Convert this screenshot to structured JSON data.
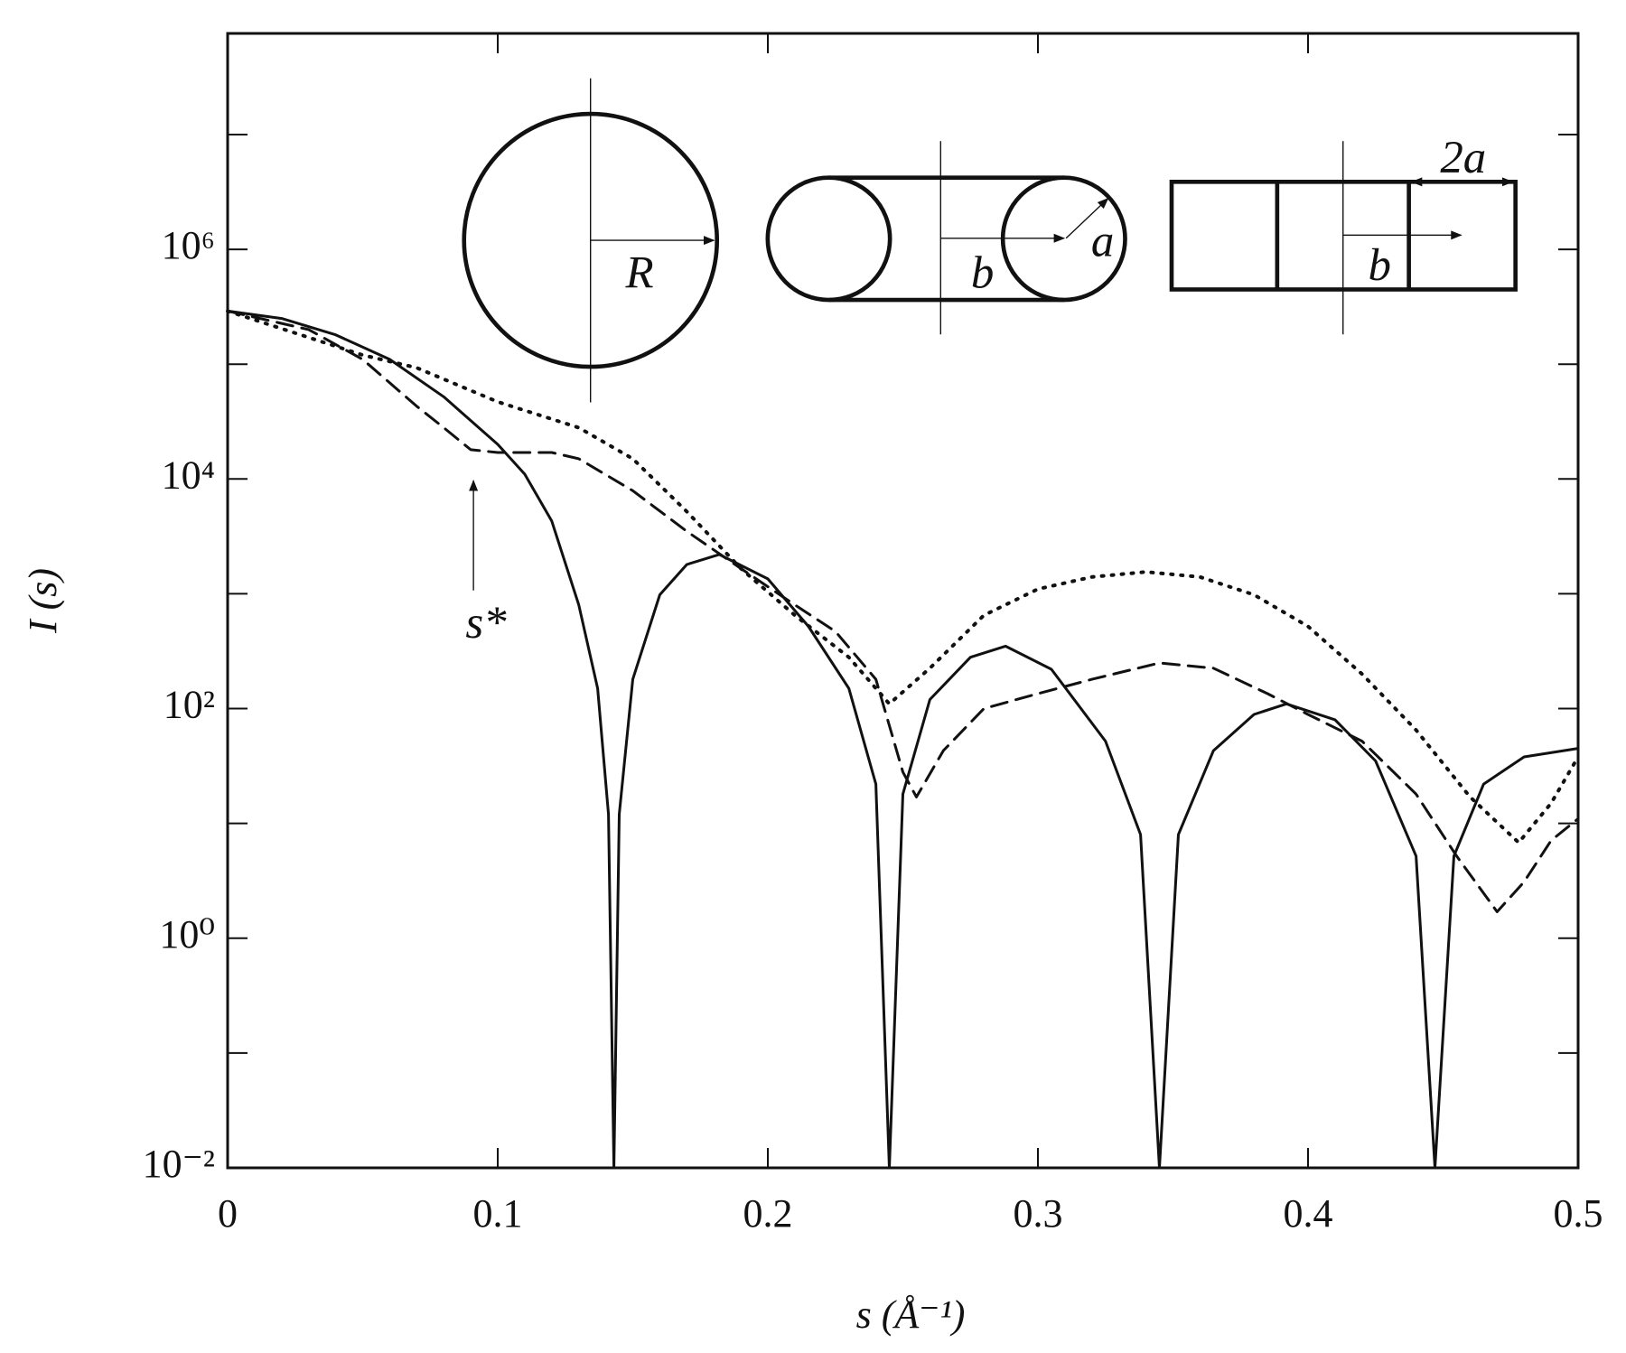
{
  "chart_data": {
    "type": "line",
    "xlabel": "s (Å⁻¹)",
    "ylabel": "I (s)",
    "xlim": [
      0,
      0.5
    ],
    "xticks": [
      0,
      0.1,
      0.2,
      0.3,
      0.4,
      0.5
    ],
    "ylim": [
      0.01,
      76000000
    ],
    "yscale": "log",
    "yticks": [
      {
        "value": 0.01,
        "label": "10⁻²"
      },
      {
        "value": 1,
        "label": "10⁰"
      },
      {
        "value": 100,
        "label": "10²"
      },
      {
        "value": 10000,
        "label": "10⁴"
      },
      {
        "value": 1000000,
        "label": "10⁶"
      }
    ],
    "yminorticks": [
      0.1,
      10,
      1000,
      100000,
      10000000
    ],
    "annotation": "s*",
    "inset_labels": [
      "R",
      "b",
      "a",
      "b",
      "2a"
    ],
    "series": [
      {
        "style": "solid",
        "color": "#111111",
        "x": [
          0,
          0.02,
          0.04,
          0.06,
          0.08,
          0.1,
          0.11,
          0.12,
          0.13,
          0.137,
          0.141,
          0.143,
          0.145,
          0.15,
          0.16,
          0.17,
          0.182,
          0.2,
          0.215,
          0.23,
          0.24,
          0.245,
          0.25,
          0.26,
          0.275,
          0.288,
          0.305,
          0.325,
          0.338,
          0.345,
          0.352,
          0.365,
          0.38,
          0.392,
          0.41,
          0.425,
          0.44,
          0.447,
          0.454,
          0.465,
          0.48,
          0.5
        ],
        "values": [
          290000,
          250000,
          180000,
          110000,
          52000,
          20000,
          11000,
          4300,
          800,
          150,
          12,
          0.01,
          12,
          180,
          980,
          1800,
          2200,
          1350,
          520,
          150,
          22,
          0.01,
          18,
          120,
          280,
          350,
          220,
          52,
          8,
          0.01,
          8,
          43,
          89,
          110,
          80,
          35,
          5.2,
          0.01,
          5.2,
          22,
          38,
          45
        ]
      },
      {
        "style": "dashed",
        "color": "#111111",
        "x": [
          0,
          0.03,
          0.05,
          0.07,
          0.08,
          0.09,
          0.1,
          0.12,
          0.13,
          0.15,
          0.17,
          0.19,
          0.21,
          0.225,
          0.24,
          0.25,
          0.255,
          0.265,
          0.28,
          0.3,
          0.32,
          0.345,
          0.365,
          0.385,
          0.4,
          0.42,
          0.44,
          0.455,
          0.47,
          0.48,
          0.49,
          0.5
        ],
        "values": [
          290000,
          200000,
          110000,
          43000,
          28000,
          18000,
          17000,
          17000,
          15000,
          7900,
          3500,
          1660,
          800,
          470,
          180,
          28,
          17,
          43,
          100,
          135,
          180,
          250,
          225,
          135,
          89,
          52,
          18,
          5.2,
          1.7,
          3.1,
          7.1,
          11
        ]
      },
      {
        "style": "dotted",
        "color": "#111111",
        "x": [
          0,
          0.05,
          0.07,
          0.1,
          0.13,
          0.15,
          0.17,
          0.19,
          0.21,
          0.23,
          0.245,
          0.26,
          0.28,
          0.3,
          0.32,
          0.34,
          0.36,
          0.38,
          0.4,
          0.42,
          0.44,
          0.46,
          0.478,
          0.49,
          0.5
        ],
        "values": [
          290000,
          120000,
          93000,
          47000,
          28000,
          15000,
          5200,
          1660,
          650,
          280,
          110,
          225,
          650,
          1100,
          1400,
          1550,
          1400,
          980,
          520,
          200,
          65,
          17,
          6.8,
          15,
          38
        ]
      }
    ]
  }
}
